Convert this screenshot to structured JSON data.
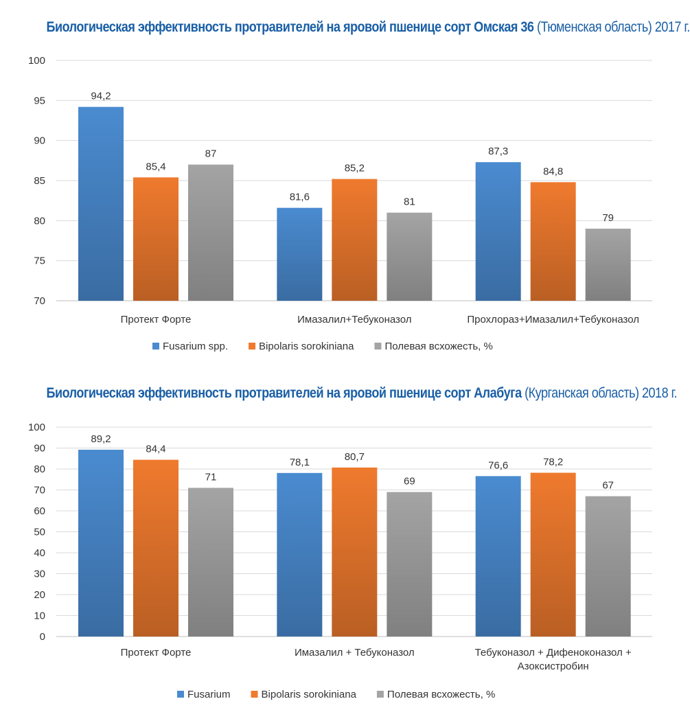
{
  "chart_data": [
    {
      "type": "bar",
      "title_bold": "Биологическая эффективность протравителей на яровой пшенице сорт Омская 36",
      "title_normal": "(Тюменская область) 2017 г.",
      "categories": [
        "Протект Форте",
        "Имазалил+Тебуконазол",
        "Прохлораз+Имазалил+Тебуконазол"
      ],
      "series": [
        {
          "name": "Fusarium  spp.",
          "color": "#4a8bd0",
          "values": [
            94.2,
            81.6,
            87.3
          ],
          "labels": [
            "94,2",
            "81,6",
            "87,3"
          ]
        },
        {
          "name": "Bipolaris sorokiniana",
          "color": "#ef7a2e",
          "values": [
            85.4,
            85.2,
            84.8
          ],
          "labels": [
            "85,4",
            "85,2",
            "84,8"
          ]
        },
        {
          "name": "Полевая всхожесть, %",
          "color": "#a4a4a4",
          "values": [
            87,
            81,
            79
          ],
          "labels": [
            "87",
            "81",
            "79"
          ]
        }
      ],
      "ylim": [
        70,
        100
      ],
      "yticks": [
        70,
        75,
        80,
        85,
        90,
        95,
        100
      ],
      "grid": true,
      "legend": "bottom"
    },
    {
      "type": "bar",
      "title_bold": "Биологическая эффективность протравителей на яровой пшенице сорт Алабуга",
      "title_normal": "(Курганская область) 2018 г.",
      "categories": [
        "Протект Форте",
        "Имазалил + Тебуконазол",
        "Тебуконазол + Дифеноконазол + Азоксистробин"
      ],
      "category_lines": [
        [
          "Протект Форте"
        ],
        [
          "Имазалил + Тебуконазол"
        ],
        [
          "Тебуконазол + Дифеноконазол +",
          "Азоксистробин"
        ]
      ],
      "series": [
        {
          "name": "Fusarium",
          "color": "#4a8bd0",
          "values": [
            89.2,
            78.1,
            76.6
          ],
          "labels": [
            "89,2",
            "78,1",
            "76,6"
          ]
        },
        {
          "name": "Bipolaris sorokiniana",
          "color": "#ef7a2e",
          "values": [
            84.4,
            80.7,
            78.2
          ],
          "labels": [
            "84,4",
            "80,7",
            "78,2"
          ]
        },
        {
          "name": "Полевая всхожесть, %",
          "color": "#a4a4a4",
          "values": [
            71,
            69,
            67
          ],
          "labels": [
            "71",
            "69",
            "67"
          ]
        }
      ],
      "ylim": [
        0,
        100
      ],
      "yticks": [
        0,
        10,
        20,
        30,
        40,
        50,
        60,
        70,
        80,
        90,
        100
      ],
      "grid": true,
      "legend": "bottom"
    }
  ]
}
